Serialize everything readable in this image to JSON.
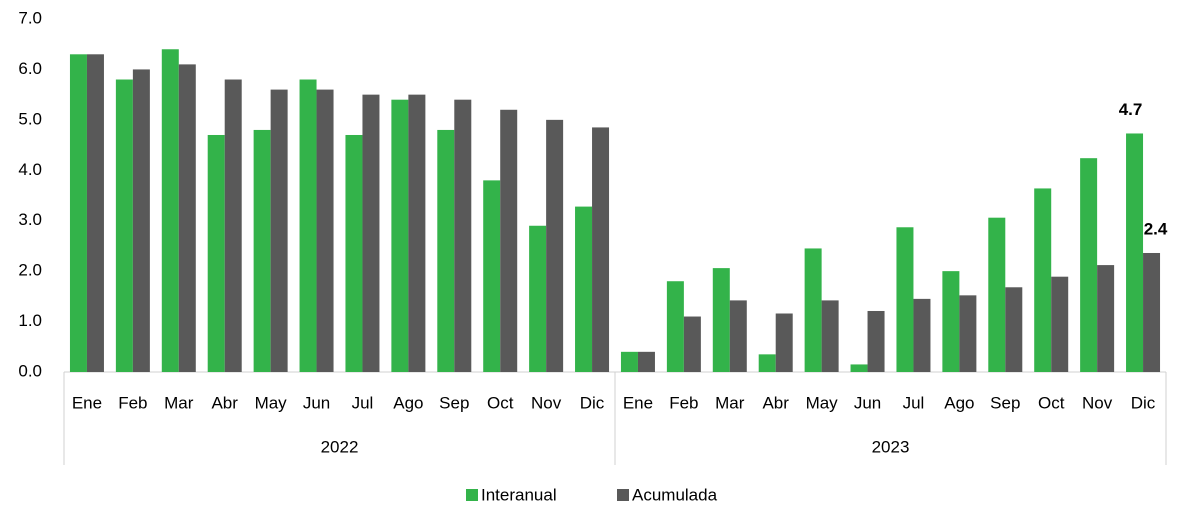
{
  "chart_data": {
    "type": "bar",
    "categories": [
      "Ene",
      "Feb",
      "Mar",
      "Abr",
      "May",
      "Jun",
      "Jul",
      "Ago",
      "Sep",
      "Oct",
      "Nov",
      "Dic",
      "Ene",
      "Feb",
      "Mar",
      "Abr",
      "May",
      "Jun",
      "Jul",
      "Ago",
      "Sep",
      "Oct",
      "Nov",
      "Dic"
    ],
    "category_groups": [
      "2022",
      "2023"
    ],
    "series": [
      {
        "name": "Interanual",
        "color": "#33b34a",
        "values": [
          6.3,
          5.8,
          6.4,
          4.7,
          4.8,
          5.8,
          4.7,
          5.4,
          4.8,
          3.8,
          2.9,
          3.28,
          0.4,
          1.8,
          2.06,
          0.35,
          2.45,
          0.15,
          2.87,
          2.0,
          3.06,
          3.64,
          4.24,
          4.73
        ],
        "value_labels": [
          null,
          null,
          null,
          null,
          null,
          null,
          null,
          null,
          null,
          null,
          null,
          null,
          null,
          null,
          null,
          null,
          null,
          null,
          null,
          null,
          null,
          null,
          null,
          "4.7"
        ]
      },
      {
        "name": "Acumulada",
        "color": "#595959",
        "values": [
          6.3,
          6.0,
          6.1,
          5.8,
          5.6,
          5.6,
          5.5,
          5.5,
          5.4,
          5.2,
          5.0,
          4.85,
          0.4,
          1.1,
          1.42,
          1.16,
          1.42,
          1.21,
          1.45,
          1.52,
          1.68,
          1.89,
          2.12,
          2.36
        ],
        "value_labels": [
          null,
          null,
          null,
          null,
          null,
          null,
          null,
          null,
          null,
          null,
          null,
          null,
          null,
          null,
          null,
          null,
          null,
          null,
          null,
          null,
          null,
          null,
          null,
          "2.4"
        ]
      }
    ],
    "ylim": [
      0,
      7
    ],
    "yticks": [
      {
        "value": 0,
        "label": "0.0"
      },
      {
        "value": 1,
        "label": "1.0"
      },
      {
        "value": 2,
        "label": "2.0"
      },
      {
        "value": 3,
        "label": "3.0"
      },
      {
        "value": 4,
        "label": "4.0"
      },
      {
        "value": 5,
        "label": "5.0"
      },
      {
        "value": 6,
        "label": "6.0"
      },
      {
        "value": 7,
        "label": "7.0"
      }
    ],
    "grid": false,
    "legend": "bottom"
  }
}
